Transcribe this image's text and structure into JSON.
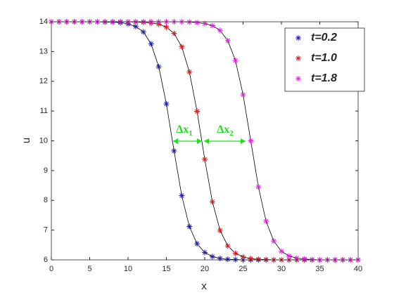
{
  "chart_data": {
    "type": "line",
    "xlabel": "x",
    "ylabel": "u",
    "x": [
      0,
      1,
      2,
      3,
      4,
      5,
      6,
      7,
      8,
      9,
      10,
      11,
      12,
      13,
      14,
      15,
      16,
      17,
      18,
      19,
      20,
      21,
      22,
      23,
      24,
      25,
      26,
      27,
      28,
      29,
      30,
      31,
      32,
      33,
      34,
      35,
      36,
      37,
      38,
      39,
      40
    ],
    "series": [
      {
        "name": "t=0.2",
        "color": "#1c1cb0",
        "values": [
          14,
          14,
          14,
          14,
          14,
          14,
          14,
          13.99,
          13.99,
          13.97,
          13.93,
          13.84,
          13.66,
          13.26,
          12.49,
          11.24,
          9.66,
          8.16,
          7.12,
          6.54,
          6.25,
          6.11,
          6.05,
          6.02,
          6.01,
          6,
          6,
          6,
          6,
          6,
          6,
          6,
          6,
          6,
          6,
          6,
          6,
          6,
          6,
          6,
          6
        ]
      },
      {
        "name": "t=1.0",
        "color": "#cc2020",
        "values": [
          14,
          14,
          14,
          14,
          14,
          14,
          14,
          14,
          14,
          14,
          14,
          13.99,
          13.98,
          13.96,
          13.92,
          13.82,
          13.61,
          13.16,
          12.31,
          10.99,
          9.38,
          7.95,
          6.99,
          6.47,
          6.22,
          6.1,
          6.04,
          6.02,
          6.01,
          6,
          6,
          6,
          6,
          6,
          6,
          6,
          6,
          6,
          6,
          6,
          6
        ]
      },
      {
        "name": "t=1.8",
        "color": "#e020e0",
        "values": [
          14,
          14,
          14,
          14,
          14,
          14,
          14,
          14,
          14,
          14,
          14,
          14,
          14,
          14,
          14,
          14,
          14,
          14,
          13.99,
          13.97,
          13.94,
          13.87,
          13.71,
          13.37,
          12.7,
          11.55,
          10,
          8.45,
          7.3,
          6.63,
          6.29,
          6.13,
          6.06,
          6.03,
          6.01,
          6,
          6,
          6,
          6,
          6,
          6
        ]
      }
    ],
    "xlim": [
      0,
      40
    ],
    "xticks": [
      0,
      5,
      10,
      15,
      20,
      25,
      30,
      35,
      40
    ],
    "ylim": [
      6,
      14
    ],
    "yticks": [
      6,
      7,
      8,
      9,
      10,
      11,
      12,
      13,
      14
    ],
    "legend": "northeast",
    "legend_text_color": "#8b1a1a",
    "annotations": [
      {
        "text": "Δx",
        "subscript": "1",
        "color": "#22dd22"
      },
      {
        "text": "Δx",
        "subscript": "2",
        "color": "#22dd22"
      }
    ]
  }
}
